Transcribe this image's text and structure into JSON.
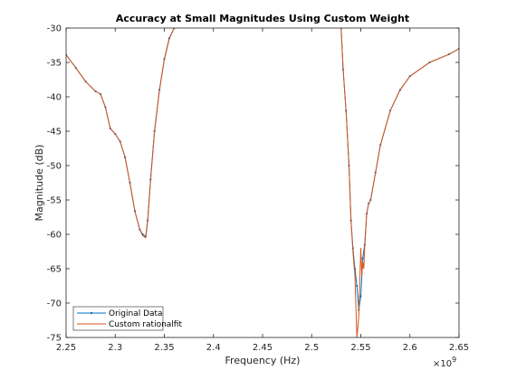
{
  "chart_data": {
    "type": "line",
    "title": "Accuracy at Small Magnitudes Using Custom Weight",
    "xlabel": "Frequency (Hz)",
    "ylabel": "Magnitude (dB)",
    "x_exponent_label": "×10",
    "x_exponent_power": "9",
    "xlim": [
      2.25,
      2.65
    ],
    "ylim": [
      -75,
      -30
    ],
    "x_ticks": [
      2.25,
      2.3,
      2.35,
      2.4,
      2.45,
      2.5,
      2.55,
      2.6,
      2.65
    ],
    "x_tick_labels": [
      "2.25",
      "2.3",
      "2.35",
      "2.4",
      "2.45",
      "2.5",
      "2.55",
      "2.6",
      "2.65"
    ],
    "y_ticks": [
      -30,
      -35,
      -40,
      -45,
      -50,
      -55,
      -60,
      -65,
      -70,
      -75
    ],
    "y_tick_labels": [
      "-30",
      "-35",
      "-40",
      "-45",
      "-50",
      "-55",
      "-60",
      "-65",
      "-70",
      "-75"
    ],
    "grid": false,
    "legend_position": "bottom-left",
    "series": [
      {
        "name": "Original Data",
        "color": "#0072BD",
        "marker": "dot",
        "x": [
          2.25,
          2.26,
          2.27,
          2.28,
          2.285,
          2.29,
          2.295,
          2.3,
          2.305,
          2.31,
          2.315,
          2.32,
          2.325,
          2.328,
          2.331,
          2.333,
          2.336,
          2.34,
          2.345,
          2.35,
          2.355,
          2.36
        ],
        "y": [
          -33.9,
          -35.8,
          -37.8,
          -39.2,
          -39.6,
          -41.5,
          -44.6,
          -45.4,
          -46.5,
          -48.8,
          -52.5,
          -56.6,
          -59.3,
          -60.0,
          -60.3,
          -58.0,
          -52.0,
          -45.0,
          -39.0,
          -34.5,
          -31.5,
          -30.0
        ]
      },
      {
        "name": "Custom rationalfit",
        "color": "#D95319",
        "marker": "none",
        "x": [
          2.25,
          2.26,
          2.27,
          2.28,
          2.285,
          2.29,
          2.295,
          2.3,
          2.305,
          2.31,
          2.315,
          2.32,
          2.325,
          2.328,
          2.331,
          2.333,
          2.336,
          2.34,
          2.345,
          2.35,
          2.355,
          2.36
        ],
        "y": [
          -33.9,
          -35.8,
          -37.8,
          -39.2,
          -39.6,
          -41.5,
          -44.6,
          -45.4,
          -46.5,
          -48.8,
          -52.5,
          -56.6,
          -59.3,
          -60.2,
          -60.5,
          -58.2,
          -52.2,
          -45.2,
          -39.1,
          -34.6,
          -31.6,
          -30.0
        ]
      }
    ],
    "series_right": [
      {
        "name": "Original Data",
        "x": [
          2.53,
          2.532,
          2.535,
          2.538,
          2.54,
          2.542,
          2.544,
          2.546,
          2.548,
          2.55,
          2.552,
          2.554,
          2.556,
          2.558,
          2.56,
          2.565,
          2.57,
          2.58,
          2.59,
          2.6,
          2.62,
          2.64,
          2.65
        ],
        "y": [
          -30.0,
          -36.0,
          -42.0,
          -50.0,
          -58.0,
          -62.0,
          -65.0,
          -67.5,
          -71.0,
          -69.0,
          -63.5,
          -61.5,
          -57.0,
          -55.5,
          -55.0,
          -51.0,
          -47.0,
          -42.0,
          -39.0,
          -37.0,
          -35.0,
          -33.8,
          -33.0
        ]
      },
      {
        "name": "Custom rationalfit",
        "x": [
          2.53,
          2.532,
          2.535,
          2.538,
          2.54,
          2.542,
          2.544,
          2.546,
          2.548,
          2.55,
          2.551,
          2.552,
          2.553,
          2.554,
          2.556,
          2.558,
          2.56,
          2.565,
          2.57,
          2.58,
          2.59,
          2.6,
          2.62,
          2.64,
          2.65
        ],
        "y": [
          -30.0,
          -36.0,
          -42.0,
          -50.0,
          -58.0,
          -62.5,
          -66.0,
          -75.0,
          -72.0,
          -62.0,
          -66.0,
          -64.0,
          -65.0,
          -62.0,
          -57.0,
          -55.5,
          -55.0,
          -51.0,
          -47.0,
          -42.0,
          -39.0,
          -37.0,
          -35.0,
          -33.8,
          -33.0
        ]
      }
    ]
  }
}
